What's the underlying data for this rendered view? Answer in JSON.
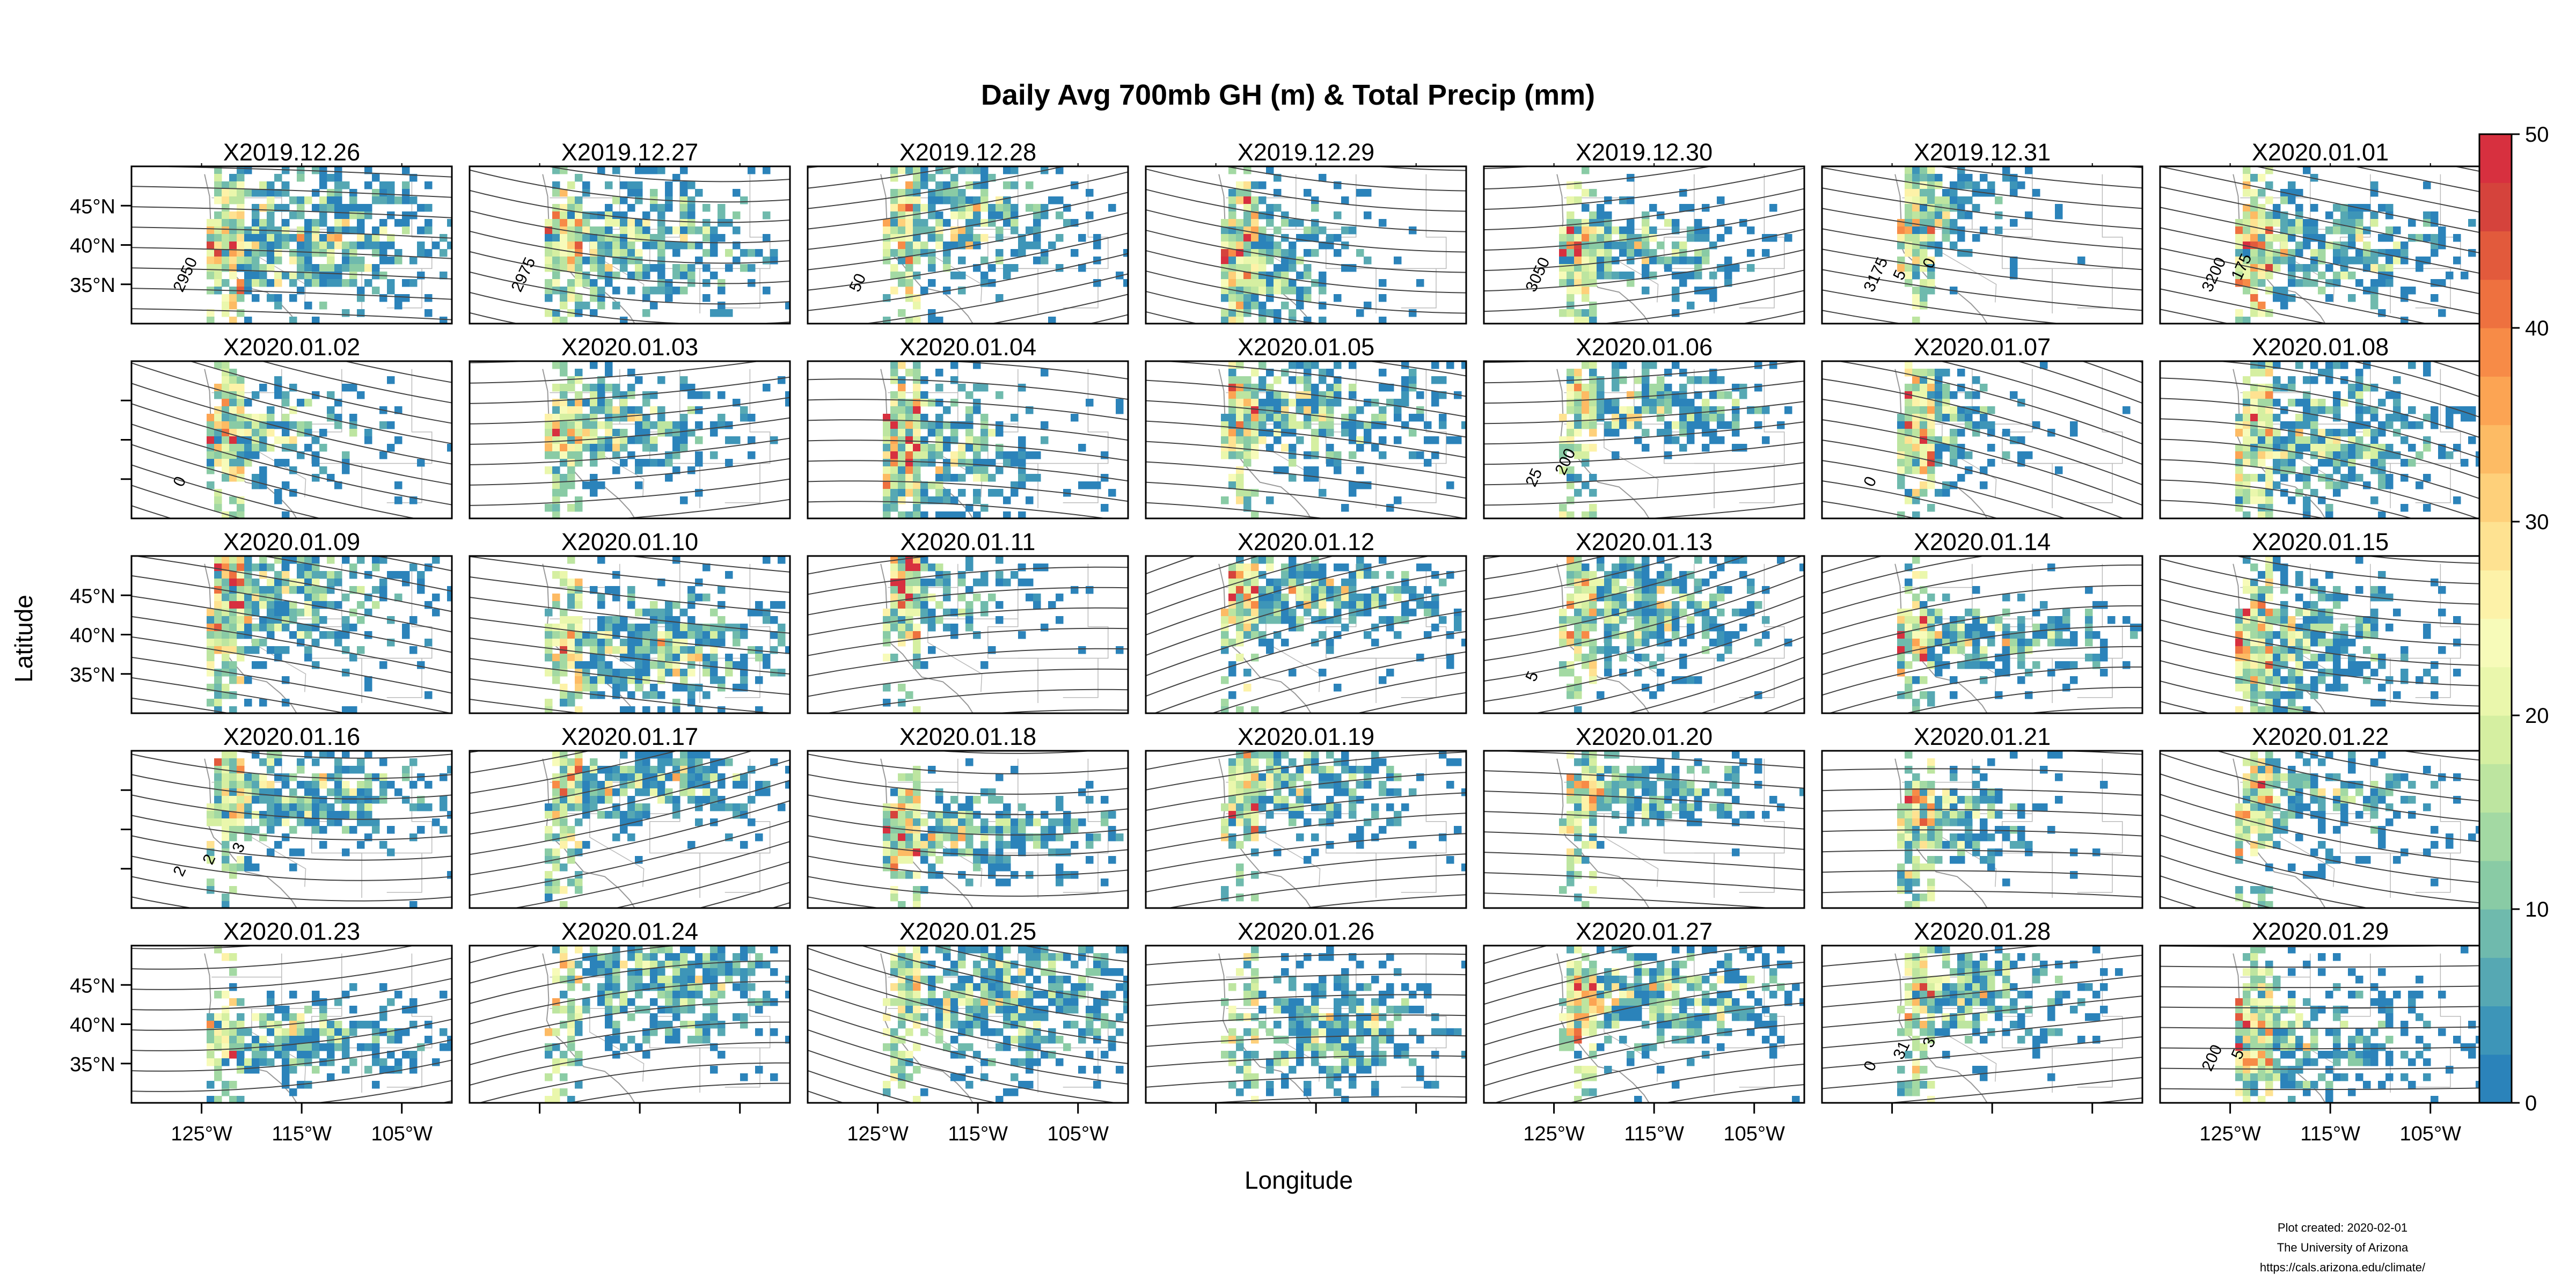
{
  "chart_data": {
    "type": "heatmap",
    "title": "Daily Avg 700mb GH (m) & Total Precip (mm)",
    "xlabel": "Longitude",
    "ylabel": "Latitude",
    "layout": {
      "rows": 5,
      "cols": 7
    },
    "panels": [
      "X2019.12.26",
      "X2019.12.27",
      "X2019.12.28",
      "X2019.12.29",
      "X2019.12.30",
      "X2019.12.31",
      "X2020.01.01",
      "X2020.01.02",
      "X2020.01.03",
      "X2020.01.04",
      "X2020.01.05",
      "X2020.01.06",
      "X2020.01.07",
      "X2020.01.08",
      "X2020.01.09",
      "X2020.01.10",
      "X2020.01.11",
      "X2020.01.12",
      "X2020.01.13",
      "X2020.01.14",
      "X2020.01.15",
      "X2020.01.16",
      "X2020.01.17",
      "X2020.01.18",
      "X2020.01.19",
      "X2020.01.20",
      "X2020.01.21",
      "X2020.01.22",
      "X2020.01.23",
      "X2020.01.24",
      "X2020.01.25",
      "X2020.01.26",
      "X2020.01.27",
      "X2020.01.28",
      "X2020.01.29"
    ],
    "x_ticks": [
      "125°W",
      "115°W",
      "105°W"
    ],
    "y_ticks": [
      "35°N",
      "40°N",
      "45°N"
    ],
    "x_range": [
      -132,
      -100
    ],
    "y_range": [
      30,
      50
    ],
    "contour_labels": [
      {
        "panel": 0,
        "text": "2950"
      },
      {
        "panel": 1,
        "text": "2975"
      },
      {
        "panel": 2,
        "text": "50"
      },
      {
        "panel": 4,
        "text": "3050"
      },
      {
        "panel": 5,
        "text": "3175"
      },
      {
        "panel": 5,
        "text": "5"
      },
      {
        "panel": 5,
        "text": "0"
      },
      {
        "panel": 6,
        "text": "3200"
      },
      {
        "panel": 6,
        "text": "175"
      },
      {
        "panel": 7,
        "text": "0"
      },
      {
        "panel": 11,
        "text": "25"
      },
      {
        "panel": 11,
        "text": "200"
      },
      {
        "panel": 12,
        "text": "0"
      },
      {
        "panel": 18,
        "text": "5"
      },
      {
        "panel": 21,
        "text": "2"
      },
      {
        "panel": 21,
        "text": "2"
      },
      {
        "panel": 21,
        "text": "3"
      },
      {
        "panel": 33,
        "text": "0"
      },
      {
        "panel": 33,
        "text": "31"
      },
      {
        "panel": 33,
        "text": "3"
      },
      {
        "panel": 34,
        "text": "200"
      },
      {
        "panel": 34,
        "text": "5"
      }
    ],
    "colorbar": {
      "ticks": [
        0,
        10,
        20,
        30,
        40,
        50
      ],
      "range": [
        0,
        50
      ],
      "palette": [
        "#2b83ba",
        "#3d95b8",
        "#56a8b3",
        "#6fbaad",
        "#89cba5",
        "#a3d9a3",
        "#bde5a0",
        "#d5efa1",
        "#eaf7ac",
        "#f7fbb9",
        "#fdf2a8",
        "#fee291",
        "#fed07a",
        "#fdbb64",
        "#fca453",
        "#f78b47",
        "#ee713f",
        "#e25a3c",
        "#d5433c",
        "#d7303f"
      ]
    },
    "contour_color": "#444444",
    "grid": false
  },
  "footer": {
    "line1": "Plot created: 2020-02-01",
    "line2": "The University of Arizona",
    "line3": "https://cals.arizona.edu/climate/"
  }
}
